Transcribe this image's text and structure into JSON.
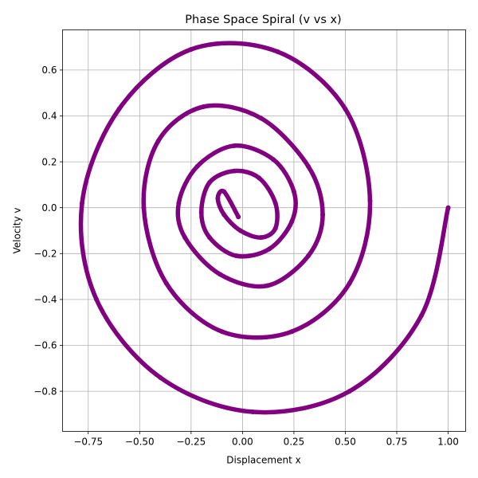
{
  "chart_data": {
    "type": "scatter",
    "title": "Phase Space Spiral (v vs x)",
    "xlabel": "Displacement x",
    "ylabel": "Velocity v",
    "xlim": [
      -0.875,
      1.085
    ],
    "ylim": [
      -0.975,
      0.775
    ],
    "xticks": [
      -0.75,
      -0.5,
      -0.25,
      0.0,
      0.25,
      0.5,
      0.75,
      1.0
    ],
    "xtick_labels": [
      "−0.75",
      "−0.50",
      "−0.25",
      "0.00",
      "0.25",
      "0.50",
      "0.75",
      "1.00"
    ],
    "yticks": [
      -0.8,
      -0.6,
      -0.4,
      -0.2,
      0.0,
      0.2,
      0.4,
      0.6
    ],
    "ytick_labels": [
      "−0.8",
      "−0.6",
      "−0.4",
      "−0.2",
      "0.0",
      "0.2",
      "0.4",
      "0.6"
    ],
    "grid": true,
    "legend": "none",
    "series": [
      {
        "color": "#800080",
        "marker": "circle",
        "x": [
          1.0,
          0.87,
          0.52,
          0.05,
          -0.4,
          -0.71,
          -0.78,
          -0.6,
          -0.25,
          0.17,
          0.5,
          0.62,
          0.52,
          0.24,
          -0.1,
          -0.37,
          -0.48,
          -0.41,
          -0.19,
          0.09,
          0.32,
          0.39,
          0.32,
          0.12,
          -0.11,
          -0.28,
          -0.31,
          -0.22,
          -0.04,
          0.15,
          0.25,
          0.24,
          0.13,
          -0.03,
          -0.16,
          -0.2,
          -0.16,
          -0.04,
          0.08,
          0.16,
          0.16,
          0.09,
          -0.01,
          -0.09,
          -0.12,
          -0.09,
          -0.02
        ],
        "y": [
          0.0,
          -0.47,
          -0.8,
          -0.89,
          -0.74,
          -0.4,
          0.02,
          0.43,
          0.69,
          0.68,
          0.43,
          0.03,
          -0.33,
          -0.54,
          -0.54,
          -0.33,
          0.0,
          0.29,
          0.44,
          0.39,
          0.18,
          -0.03,
          -0.21,
          -0.34,
          -0.29,
          -0.13,
          0.02,
          0.18,
          0.27,
          0.21,
          0.07,
          -0.06,
          -0.18,
          -0.21,
          -0.13,
          -0.02,
          0.11,
          0.16,
          0.13,
          0.02,
          -0.09,
          -0.13,
          -0.1,
          -0.03,
          0.04,
          0.07,
          -0.04
        ]
      }
    ]
  }
}
